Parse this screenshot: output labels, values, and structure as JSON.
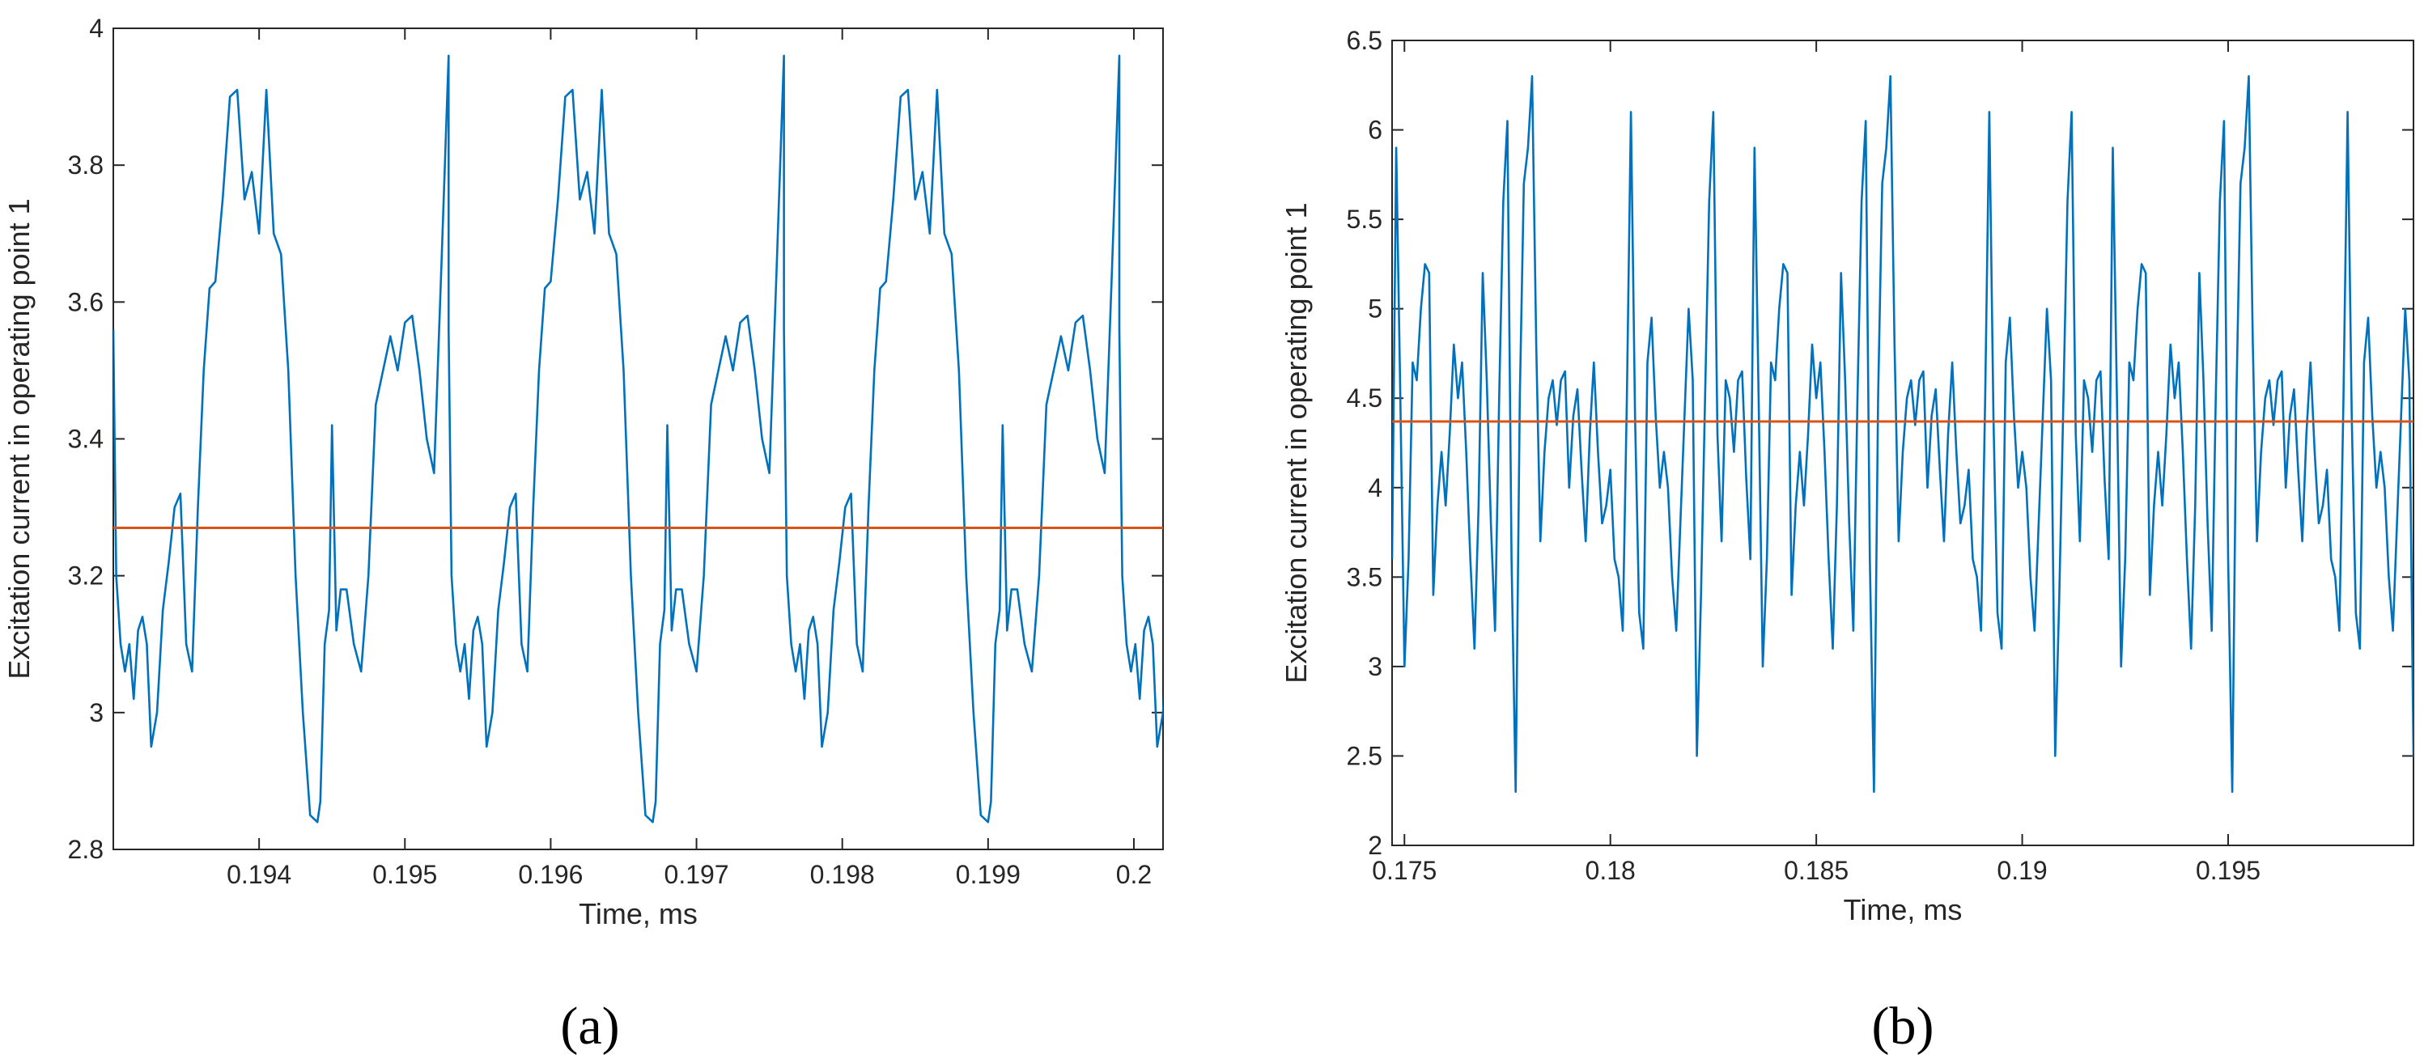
{
  "colors": {
    "signal": "#0072BD",
    "mean": "#D95319",
    "axis": "#262626"
  },
  "chart_data": [
    {
      "type": "line",
      "panel_label": "(a)",
      "xlabel": "Time, ms",
      "ylabel": "Excitation current in operating point 1",
      "xlim": [
        0.193,
        0.2002
      ],
      "ylim": [
        2.8,
        4.0
      ],
      "xticks": [
        0.194,
        0.195,
        0.196,
        0.197,
        0.198,
        0.199,
        0.2
      ],
      "xtick_labels": [
        "0.194",
        "0.195",
        "0.196",
        "0.197",
        "0.198",
        "0.199",
        "0.2"
      ],
      "yticks": [
        2.8,
        3.0,
        3.2,
        3.4,
        3.6,
        3.8,
        4.0
      ],
      "ytick_labels": [
        "2.8",
        "3",
        "3.2",
        "3.4",
        "3.6",
        "3.8",
        "4"
      ],
      "mean_line": 3.27,
      "series": [
        {
          "period_x": 0.0023,
          "x": [
            0.193,
            0.19302,
            0.19305,
            0.19308,
            0.19311,
            0.19314,
            0.19317,
            0.1932,
            0.19323,
            0.19326,
            0.1933,
            0.19334,
            0.19338,
            0.19342,
            0.19346,
            0.1935,
            0.19354,
            0.19358,
            0.19362,
            0.19366,
            0.1937,
            0.19375,
            0.1938,
            0.19385,
            0.1939,
            0.19395,
            0.194,
            0.19405,
            0.1941,
            0.19415,
            0.1942,
            0.19425,
            0.1943,
            0.19435,
            0.1944,
            0.19442,
            0.19445,
            0.19448,
            0.1945,
            0.19453,
            0.19456,
            0.1946,
            0.19465,
            0.1947,
            0.19475,
            0.1948,
            0.19485,
            0.1949,
            0.19495,
            0.195,
            0.19505,
            0.1951,
            0.19515,
            0.1952,
            0.19525,
            0.1953
          ],
          "y": [
            3.56,
            3.2,
            3.1,
            3.06,
            3.1,
            3.02,
            3.12,
            3.14,
            3.1,
            2.95,
            3.0,
            3.15,
            3.22,
            3.3,
            3.32,
            3.1,
            3.06,
            3.3,
            3.5,
            3.62,
            3.63,
            3.75,
            3.9,
            3.91,
            3.75,
            3.79,
            3.7,
            3.91,
            3.7,
            3.67,
            3.5,
            3.2,
            3.0,
            2.85,
            2.84,
            2.87,
            3.1,
            3.15,
            3.42,
            3.12,
            3.18,
            3.18,
            3.1,
            3.06,
            3.2,
            3.45,
            3.5,
            3.55,
            3.5,
            3.57,
            3.58,
            3.5,
            3.4,
            3.35,
            3.65,
            3.96
          ]
        }
      ]
    },
    {
      "type": "line",
      "panel_label": "(b)",
      "xlabel": "Time, ms",
      "ylabel": "Excitation current in operating point 1",
      "xlim": [
        0.1747,
        0.1995
      ],
      "ylim": [
        2.0,
        6.5
      ],
      "xticks": [
        0.175,
        0.18,
        0.185,
        0.19,
        0.195
      ],
      "xtick_labels": [
        "0.175",
        "0.18",
        "0.185",
        "0.19",
        "0.195"
      ],
      "yticks": [
        2.0,
        2.5,
        3.0,
        3.5,
        4.0,
        4.5,
        5.0,
        5.5,
        6.0,
        6.5
      ],
      "ytick_labels": [
        "2",
        "2.5",
        "3",
        "3.5",
        "4",
        "4.5",
        "5",
        "5.5",
        "6",
        "6.5"
      ],
      "mean_line": 4.37,
      "series": [
        {
          "period_x": 0.0087,
          "x": [
            0.1747,
            0.1748,
            0.1749,
            0.175,
            0.1751,
            0.1752,
            0.1753,
            0.1754,
            0.1755,
            0.1756,
            0.1757,
            0.1758,
            0.1759,
            0.176,
            0.1761,
            0.1762,
            0.1763,
            0.1764,
            0.1765,
            0.1766,
            0.1767,
            0.1768,
            0.1769,
            0.177,
            0.1771,
            0.1772,
            0.1773,
            0.1774,
            0.1775,
            0.1776,
            0.1777,
            0.1778,
            0.1779,
            0.178,
            0.1781,
            0.1782,
            0.1783,
            0.1784,
            0.1785,
            0.1786,
            0.1787,
            0.1788,
            0.1789,
            0.179,
            0.1791,
            0.1792,
            0.1793,
            0.1794,
            0.1795,
            0.1796,
            0.1797,
            0.1798,
            0.1799,
            0.18,
            0.1801,
            0.1802,
            0.1803,
            0.1804,
            0.1805,
            0.1806,
            0.1807,
            0.1808,
            0.1809,
            0.181,
            0.1811,
            0.1812,
            0.1813,
            0.1814,
            0.1815,
            0.1816,
            0.1817,
            0.1818,
            0.1819,
            0.182,
            0.1821,
            0.1822,
            0.1823,
            0.1824,
            0.1825,
            0.1826,
            0.1827,
            0.1828,
            0.1829,
            0.183,
            0.1831,
            0.1832,
            0.1833
          ],
          "y": [
            3.6,
            5.9,
            4.5,
            3.0,
            3.6,
            4.7,
            4.6,
            5.0,
            5.25,
            5.2,
            3.4,
            3.9,
            4.2,
            3.9,
            4.3,
            4.8,
            4.5,
            4.7,
            4.2,
            3.6,
            3.1,
            3.9,
            5.2,
            4.6,
            3.8,
            3.2,
            4.5,
            5.6,
            6.05,
            3.6,
            2.3,
            4.5,
            5.7,
            5.9,
            6.3,
            4.8,
            3.7,
            4.2,
            4.5,
            4.6,
            4.35,
            4.6,
            4.65,
            4.0,
            4.4,
            4.55,
            4.1,
            3.7,
            4.3,
            4.7,
            4.2,
            3.8,
            3.9,
            4.1,
            3.6,
            3.5,
            3.2,
            4.5,
            6.1,
            4.4,
            3.3,
            3.1,
            4.7,
            4.95,
            4.4,
            4.0,
            4.2,
            4.0,
            3.5,
            3.2,
            3.8,
            4.4,
            5.0,
            4.6,
            2.5,
            3.4,
            4.5,
            5.6,
            6.1,
            4.3,
            3.7,
            4.6,
            4.5,
            4.2,
            4.6,
            4.65,
            4.05
          ]
        }
      ]
    }
  ]
}
